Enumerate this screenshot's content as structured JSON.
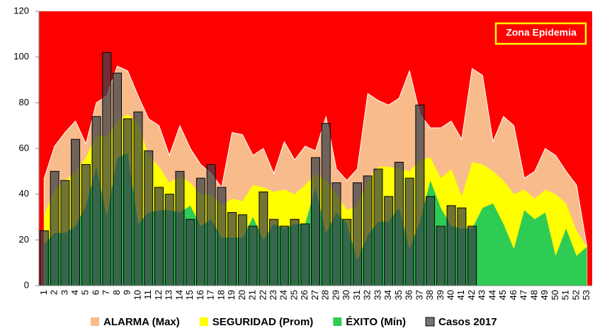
{
  "chart_data": {
    "type": "epidemic-channel",
    "annotation": "Zona Epidemia",
    "background": "#ff0000",
    "categories": [
      "1",
      "2",
      "3",
      "4",
      "5",
      "6",
      "7",
      "8",
      "9",
      "10",
      "11",
      "12",
      "13",
      "14",
      "15",
      "16",
      "17",
      "18",
      "19",
      "20",
      "21",
      "22",
      "23",
      "24",
      "25",
      "26",
      "27",
      "28",
      "29",
      "30",
      "31",
      "32",
      "33",
      "34",
      "35",
      "36",
      "37",
      "38",
      "39",
      "40",
      "41",
      "42",
      "43",
      "44",
      "45",
      "46",
      "47",
      "48",
      "49",
      "50",
      "51",
      "52",
      "53"
    ],
    "ylim": [
      0,
      120
    ],
    "yticks": [
      0,
      20,
      40,
      60,
      80,
      100,
      120
    ],
    "series": [
      {
        "name": "ALARMA (Max)",
        "kind": "area",
        "color": "#f8bc8c",
        "values": [
          47,
          61,
          67,
          72,
          62,
          80,
          83,
          96,
          94,
          83,
          73,
          70,
          57,
          70,
          60,
          53,
          49,
          43,
          67,
          66,
          57,
          60,
          49,
          63,
          55,
          61,
          59,
          74,
          51,
          46,
          51,
          84,
          81,
          79,
          82,
          94,
          75,
          69,
          69,
          72,
          64,
          95,
          92,
          63,
          74,
          70,
          47,
          50,
          60,
          57,
          50,
          44,
          17
        ]
      },
      {
        "name": "SEGURIDAD (Prom)",
        "kind": "area",
        "color": "#ffff00",
        "values": [
          31,
          42,
          46,
          50,
          56,
          66,
          65,
          72,
          75,
          71,
          57,
          52,
          45,
          48,
          45,
          40,
          40,
          35,
          38,
          37,
          44,
          43,
          41,
          42,
          40,
          44,
          49,
          46,
          40,
          33,
          35,
          46,
          52,
          52,
          51,
          50,
          55,
          56,
          47,
          51,
          39,
          54,
          53,
          50,
          46,
          40,
          42,
          38,
          42,
          40,
          36,
          24,
          17
        ]
      },
      {
        "name": "ÉXITO (Mín)",
        "kind": "area",
        "color": "#2ecc55",
        "values": [
          18,
          23,
          23,
          26,
          35,
          52,
          30,
          56,
          58,
          27,
          32,
          33,
          33,
          32,
          35,
          26,
          29,
          21,
          21,
          21,
          30,
          20,
          27,
          25,
          27,
          27,
          43,
          23,
          32,
          27,
          11,
          22,
          28,
          28,
          34,
          16,
          28,
          46,
          34,
          26,
          25,
          25,
          34,
          36,
          27,
          16,
          33,
          29,
          32,
          13,
          25,
          13,
          17
        ]
      },
      {
        "name": "Casos 2017",
        "kind": "bar",
        "color": "#3a4048",
        "values": [
          24,
          50,
          46,
          64,
          53,
          74,
          102,
          93,
          73,
          76,
          59,
          43,
          40,
          50,
          29,
          47,
          53,
          43,
          32,
          31,
          26,
          41,
          29,
          26,
          29,
          27,
          56,
          71,
          45,
          29,
          45,
          48,
          51,
          39,
          54,
          47,
          79,
          39,
          26,
          35,
          34,
          26,
          null,
          null,
          null,
          null,
          null,
          null,
          null,
          null,
          null,
          null,
          null
        ]
      }
    ]
  }
}
